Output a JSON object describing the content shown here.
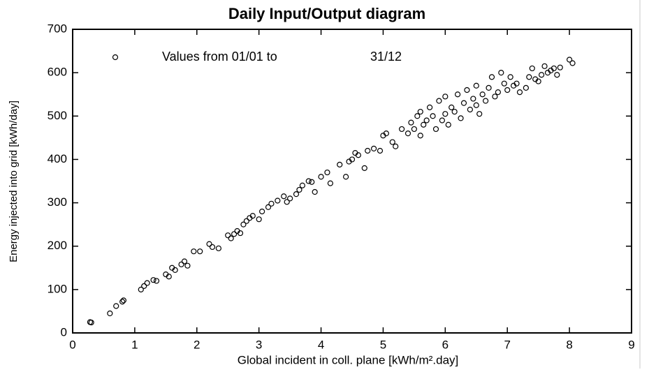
{
  "chart_data": {
    "type": "scatter",
    "title": "Daily Input/Output diagram",
    "x_label": "Global incident in coll. plane [kWh/m².day]",
    "y_label": "Energy injected into grid [kWh/day]",
    "legend_end": "31/12",
    "xlim": [
      0,
      9
    ],
    "ylim": [
      0,
      700
    ],
    "xticks": [
      0,
      1,
      2,
      3,
      4,
      5,
      6,
      7,
      8,
      9
    ],
    "yticks": [
      0,
      100,
      200,
      300,
      400,
      500,
      600,
      700
    ],
    "series": [
      {
        "name": "Values from 01/01 to",
        "color": "#000000",
        "x": [
          0.28,
          0.3,
          0.6,
          0.7,
          0.8,
          0.82,
          1.1,
          1.15,
          1.2,
          1.3,
          1.35,
          1.5,
          1.55,
          1.6,
          1.65,
          1.75,
          1.8,
          1.85,
          1.95,
          2.05,
          2.2,
          2.25,
          2.35,
          2.5,
          2.55,
          2.6,
          2.65,
          2.7,
          2.75,
          2.8,
          2.85,
          2.9,
          3.0,
          3.05,
          3.15,
          3.2,
          3.3,
          3.4,
          3.45,
          3.5,
          3.6,
          3.65,
          3.7,
          3.8,
          3.85,
          3.9,
          4.0,
          4.1,
          4.15,
          4.3,
          4.4,
          4.45,
          4.5,
          4.55,
          4.6,
          4.7,
          4.75,
          4.85,
          4.95,
          5.0,
          5.05,
          5.15,
          5.2,
          5.3,
          5.4,
          5.45,
          5.5,
          5.55,
          5.6,
          5.6,
          5.65,
          5.7,
          5.75,
          5.8,
          5.85,
          5.9,
          5.95,
          6.0,
          6.0,
          6.05,
          6.1,
          6.15,
          6.2,
          6.25,
          6.3,
          6.35,
          6.4,
          6.45,
          6.5,
          6.5,
          6.55,
          6.6,
          6.65,
          6.7,
          6.75,
          6.8,
          6.85,
          6.9,
          6.95,
          7.0,
          7.05,
          7.1,
          7.15,
          7.2,
          7.3,
          7.35,
          7.4,
          7.45,
          7.5,
          7.55,
          7.6,
          7.65,
          7.7,
          7.75,
          7.8,
          7.85,
          8.0,
          8.05
        ],
        "y": [
          25,
          24,
          45,
          62,
          72,
          75,
          100,
          108,
          115,
          122,
          120,
          135,
          130,
          150,
          145,
          158,
          165,
          155,
          188,
          188,
          205,
          198,
          195,
          225,
          218,
          228,
          235,
          230,
          250,
          258,
          265,
          270,
          262,
          280,
          290,
          298,
          305,
          315,
          302,
          310,
          320,
          330,
          340,
          350,
          348,
          325,
          360,
          370,
          345,
          388,
          360,
          395,
          400,
          415,
          410,
          380,
          420,
          425,
          420,
          455,
          460,
          440,
          430,
          470,
          460,
          485,
          470,
          500,
          455,
          510,
          480,
          490,
          520,
          500,
          470,
          535,
          490,
          505,
          545,
          480,
          520,
          510,
          550,
          495,
          530,
          560,
          515,
          540,
          570,
          525,
          505,
          550,
          535,
          565,
          590,
          545,
          555,
          600,
          575,
          560,
          590,
          570,
          575,
          555,
          565,
          590,
          610,
          585,
          580,
          595,
          615,
          600,
          605,
          610,
          595,
          612,
          630,
          622
        ]
      }
    ]
  }
}
